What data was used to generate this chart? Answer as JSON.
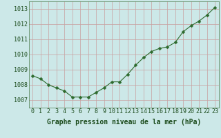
{
  "x": [
    0,
    1,
    2,
    3,
    4,
    5,
    6,
    7,
    8,
    9,
    10,
    11,
    12,
    13,
    14,
    15,
    16,
    17,
    18,
    19,
    20,
    21,
    22,
    23
  ],
  "y": [
    1008.6,
    1008.4,
    1008.0,
    1007.8,
    1007.6,
    1007.2,
    1007.2,
    1007.2,
    1007.5,
    1007.8,
    1008.2,
    1008.2,
    1008.7,
    1009.3,
    1009.8,
    1010.2,
    1010.4,
    1010.5,
    1010.8,
    1011.5,
    1011.9,
    1012.2,
    1012.6,
    1013.1
  ],
  "line_color": "#2d6a2d",
  "marker": "D",
  "marker_size": 2.5,
  "bg_color": "#cce8e8",
  "grid_color_v": "#c8a0a0",
  "grid_color_h": "#c8a0a0",
  "xlabel": "Graphe pression niveau de la mer (hPa)",
  "xlabel_color": "#1a4a1a",
  "xlabel_fontsize": 7,
  "tick_color": "#1a4a1a",
  "tick_fontsize": 6,
  "ylim": [
    1006.5,
    1013.5
  ],
  "yticks": [
    1007,
    1008,
    1009,
    1010,
    1011,
    1012,
    1013
  ],
  "xlim": [
    -0.5,
    23.5
  ],
  "xticks": [
    0,
    1,
    2,
    3,
    4,
    5,
    6,
    7,
    8,
    9,
    10,
    11,
    12,
    13,
    14,
    15,
    16,
    17,
    18,
    19,
    20,
    21,
    22,
    23
  ]
}
